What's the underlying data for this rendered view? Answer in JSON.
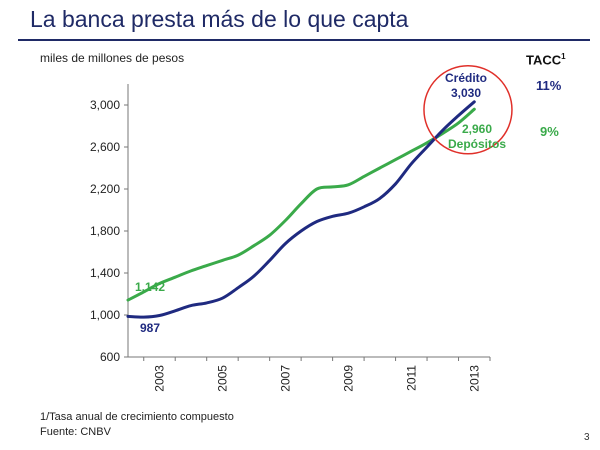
{
  "slide": {
    "title": "La banca presta más de lo que capta",
    "unit_label": "miles de millones de pesos",
    "tacc_label": "TACC",
    "tacc_sup": "1",
    "footnote": "1/Tasa anual de crecimiento compuesto",
    "source": "Fuente: CNBV",
    "page_number": "3"
  },
  "colors": {
    "title": "#1f2a66",
    "credito": "#1f2a80",
    "depositos": "#3aaa4a",
    "highlight_circle": "#e0302a"
  },
  "chart_data": {
    "type": "line",
    "title": "",
    "xlabel": "",
    "ylabel": "miles de millones de pesos",
    "ylim": [
      600,
      3200
    ],
    "yticks": [
      600,
      1000,
      1400,
      1800,
      2200,
      2600,
      3000
    ],
    "ytick_labels": [
      "600",
      "1,000",
      "1,400",
      "1,800",
      "2,200",
      "2,600",
      "3,000"
    ],
    "xlim": [
      2002,
      2013.5
    ],
    "xticks": [
      2003,
      2005,
      2007,
      2009,
      2011,
      2013
    ],
    "xtick_labels": [
      "2003",
      "2005",
      "2007",
      "2009",
      "2011",
      "2013"
    ],
    "grid": false,
    "series": [
      {
        "name": "Crédito",
        "color": "#1f2a80",
        "x": [
          2002.0,
          2002.5,
          2003.0,
          2003.5,
          2004.0,
          2004.5,
          2005.0,
          2005.5,
          2006.0,
          2006.5,
          2007.0,
          2007.5,
          2008.0,
          2008.5,
          2009.0,
          2009.5,
          2010.0,
          2010.5,
          2011.0,
          2011.5,
          2012.0,
          2012.5,
          2013.0
        ],
        "y": [
          987,
          980,
          995,
          1040,
          1090,
          1115,
          1160,
          1260,
          1370,
          1520,
          1680,
          1800,
          1890,
          1940,
          1970,
          2030,
          2110,
          2250,
          2440,
          2600,
          2760,
          2900,
          3030
        ]
      },
      {
        "name": "Depósitos",
        "color": "#3aaa4a",
        "x": [
          2002.0,
          2002.5,
          2003.0,
          2003.5,
          2004.0,
          2004.5,
          2005.0,
          2005.5,
          2006.0,
          2006.5,
          2007.0,
          2007.5,
          2008.0,
          2008.5,
          2009.0,
          2009.5,
          2010.0,
          2010.5,
          2011.0,
          2011.5,
          2012.0,
          2012.5,
          2013.0
        ],
        "y": [
          1142,
          1220,
          1300,
          1360,
          1420,
          1470,
          1520,
          1570,
          1660,
          1760,
          1900,
          2060,
          2200,
          2220,
          2240,
          2320,
          2400,
          2480,
          2560,
          2640,
          2730,
          2830,
          2960
        ]
      }
    ],
    "annotations": [
      {
        "id": "depositos_start",
        "text": "1,142",
        "series": "Depósitos"
      },
      {
        "id": "credito_start",
        "text": "987",
        "series": "Crédito"
      },
      {
        "id": "credito_end_name",
        "text": "Crédito",
        "series": "Crédito"
      },
      {
        "id": "credito_end_value",
        "text": "3,030",
        "series": "Crédito"
      },
      {
        "id": "depositos_end_value",
        "text": "2,960",
        "series": "Depósitos"
      },
      {
        "id": "depositos_end_name",
        "text": "Depósitos",
        "series": "Depósitos"
      }
    ],
    "tacc": [
      {
        "series": "Crédito",
        "value": "11%"
      },
      {
        "series": "Depósitos",
        "value": "9%"
      }
    ]
  }
}
